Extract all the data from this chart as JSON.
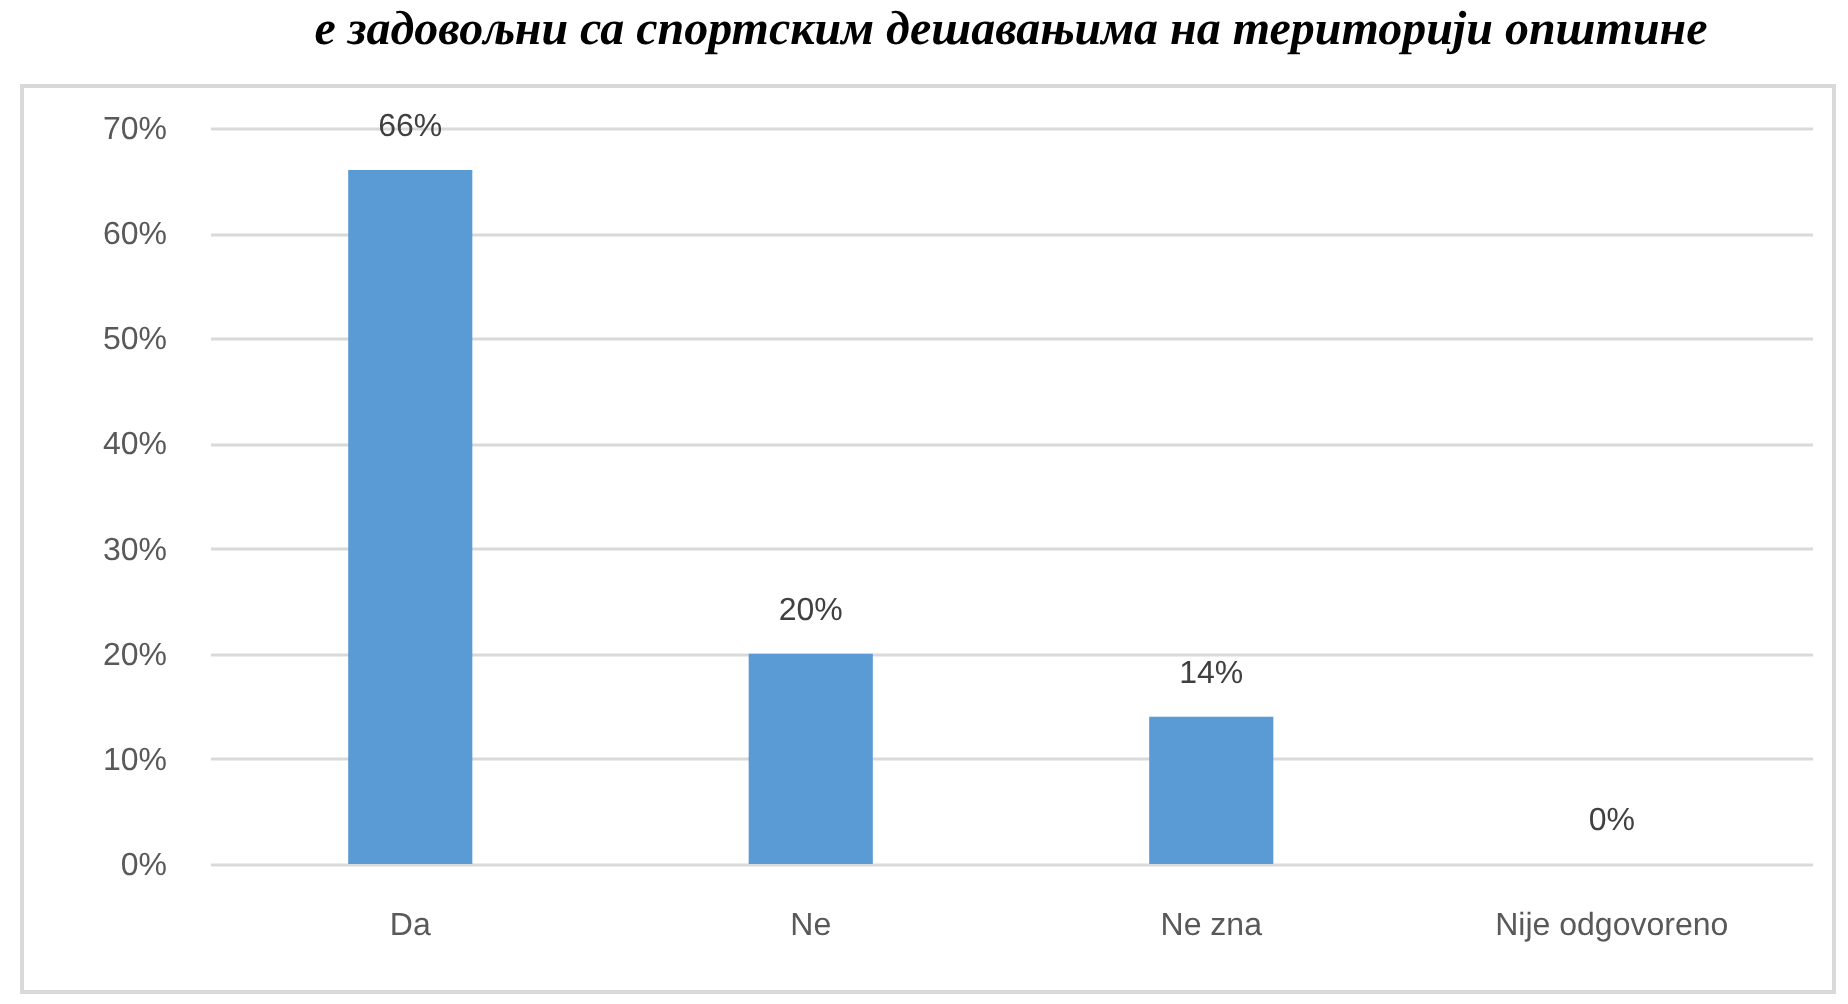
{
  "chart_data": {
    "type": "bar",
    "title": "е задовољни са спортским дешавањима на територији општине",
    "categories": [
      "Da",
      "Ne",
      "Ne zna",
      "Nije odgovoreno"
    ],
    "values": [
      66,
      20,
      14,
      0
    ],
    "value_labels": [
      "66%",
      "20%",
      "14%",
      "0%"
    ],
    "color": "#5b9bd5",
    "ylim": [
      0,
      70
    ],
    "yticks": [
      {
        "value": 0,
        "label": "0%"
      },
      {
        "value": 10,
        "label": "10%"
      },
      {
        "value": 20,
        "label": "20%"
      },
      {
        "value": 30,
        "label": "30%"
      },
      {
        "value": 40,
        "label": "40%"
      },
      {
        "value": 50,
        "label": "50%"
      },
      {
        "value": 60,
        "label": "60%"
      },
      {
        "value": 70,
        "label": "70%"
      }
    ],
    "grid": "y"
  }
}
